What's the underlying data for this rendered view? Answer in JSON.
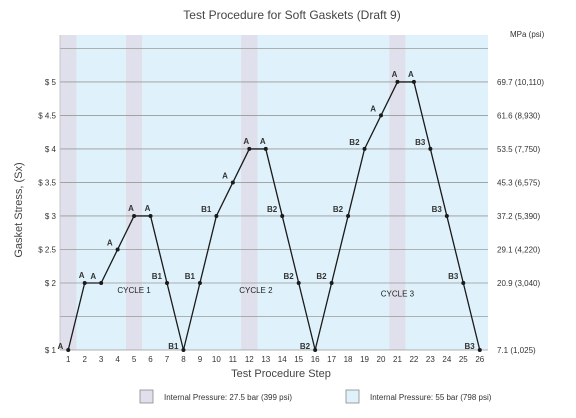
{
  "chart_data": {
    "type": "line",
    "title": "Test Procedure for Soft Gaskets (Draft 9)",
    "xlabel": "Test Procedure Step",
    "ylabel": "Gasket Stress, (Sx)",
    "right_axis_unit": "MPa (psi)",
    "x": [
      1,
      2,
      3,
      4,
      5,
      6,
      7,
      8,
      9,
      10,
      11,
      12,
      13,
      14,
      15,
      16,
      17,
      18,
      19,
      20,
      21,
      22,
      23,
      24,
      25,
      26
    ],
    "y": [
      1,
      2,
      2,
      2.5,
      3,
      3,
      2,
      1,
      2,
      3,
      3.5,
      4,
      4,
      3,
      2,
      1,
      2,
      3,
      4,
      4.5,
      5,
      5,
      4,
      3,
      2,
      1
    ],
    "point_labels": [
      "A",
      "A",
      "A",
      "A",
      "A",
      "A",
      "B1",
      "B1",
      "B1",
      "B1",
      "A",
      "A",
      "A",
      "B2",
      "B2",
      "B2",
      "B2",
      "B2",
      "B2",
      "A",
      "A",
      "A",
      "B3",
      "B3",
      "B3",
      "B3"
    ],
    "ylim": [
      1,
      5.7
    ],
    "xlim": [
      0.5,
      26.5
    ],
    "y_ticks": [
      {
        "value": 1,
        "label": "$ 1"
      },
      {
        "value": 2,
        "label": "$ 2"
      },
      {
        "value": 2.5,
        "label": "$ 2.5"
      },
      {
        "value": 3,
        "label": "$ 3"
      },
      {
        "value": 3.5,
        "label": "$ 3.5"
      },
      {
        "value": 4,
        "label": "$ 4"
      },
      {
        "value": 4.5,
        "label": "$ 4.5"
      },
      {
        "value": 5,
        "label": "$ 5"
      }
    ],
    "right_ticks": [
      {
        "value": 1,
        "label": "7.1 (1,025)"
      },
      {
        "value": 2,
        "label": "20.9 (3,040)"
      },
      {
        "value": 2.5,
        "label": "29.1 (4,220)"
      },
      {
        "value": 3,
        "label": "37.2 (5,390)"
      },
      {
        "value": 3.5,
        "label": "45.3 (6,575)"
      },
      {
        "value": 4,
        "label": "53.5 (7,750)"
      },
      {
        "value": 4.5,
        "label": "61.6 (8,930)"
      },
      {
        "value": 5,
        "label": "69.7 (10,110)"
      }
    ],
    "extra_gridlines": [
      1.5,
      5.5
    ],
    "bands": [
      {
        "from": 0.5,
        "to": 1.5,
        "pressure": "low"
      },
      {
        "from": 1.5,
        "to": 4.5,
        "pressure": "high"
      },
      {
        "from": 4.5,
        "to": 5.5,
        "pressure": "low"
      },
      {
        "from": 5.5,
        "to": 11.5,
        "pressure": "high"
      },
      {
        "from": 11.5,
        "to": 12.5,
        "pressure": "low"
      },
      {
        "from": 12.5,
        "to": 20.5,
        "pressure": "high"
      },
      {
        "from": 20.5,
        "to": 21.5,
        "pressure": "low"
      },
      {
        "from": 21.5,
        "to": 26.5,
        "pressure": "high"
      }
    ],
    "cycles": [
      {
        "label": "CYCLE 1",
        "x": 5,
        "y": 1.85
      },
      {
        "label": "CYCLE 2",
        "x": 12.4,
        "y": 1.85
      },
      {
        "label": "CYCLE 3",
        "x": 21,
        "y": 1.8
      }
    ],
    "legend": [
      {
        "label": "Internal Pressure: 27.5 bar (399 psi)",
        "pressure": "low"
      },
      {
        "label": "Internal Pressure:  55 bar (798 psi)",
        "pressure": "high"
      }
    ],
    "legend_position": "bottom",
    "grid": true,
    "colors": {
      "low": "#dfe0ec",
      "high": "#dff1fa",
      "line": "#1a1a1a",
      "grid": "#9a9a9a"
    }
  }
}
